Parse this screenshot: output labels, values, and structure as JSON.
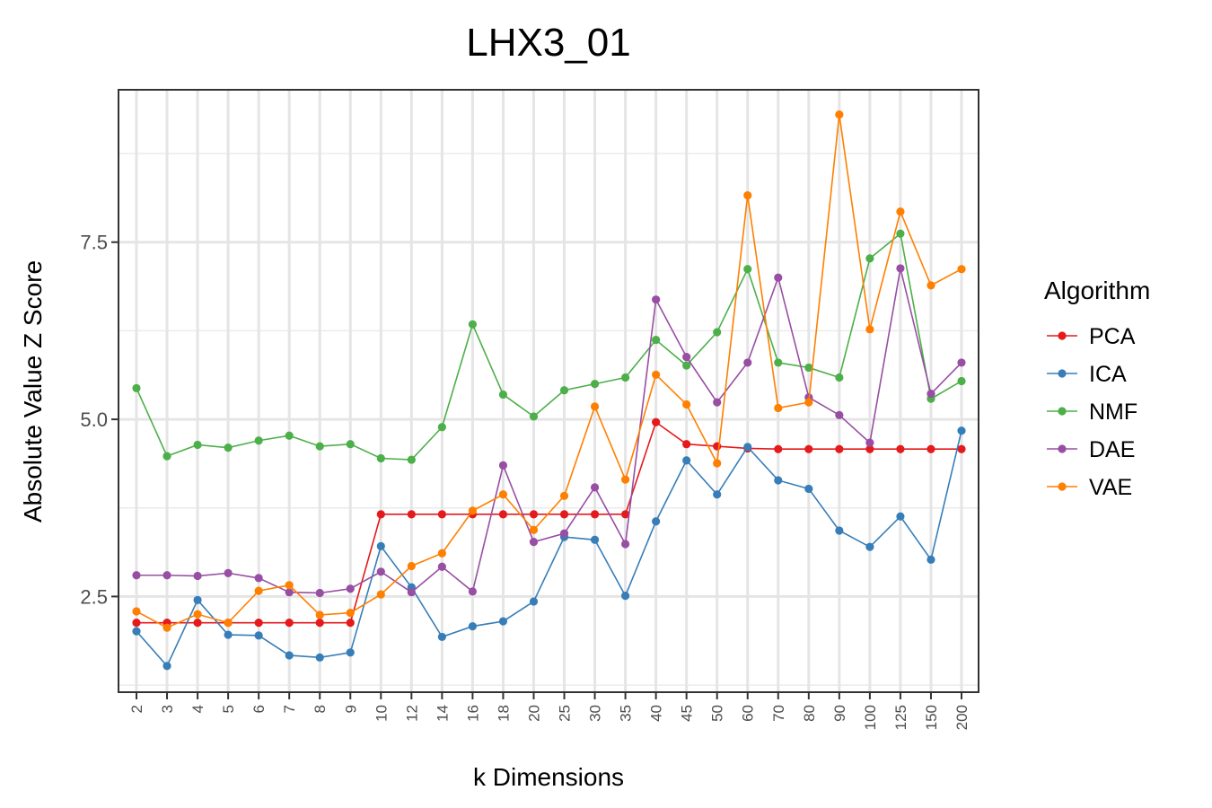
{
  "chart_data": {
    "type": "line",
    "title": "LHX3_01",
    "xlabel": "k Dimensions",
    "ylabel": "Absolute Value Z Score",
    "categories": [
      "2",
      "3",
      "4",
      "5",
      "6",
      "7",
      "8",
      "9",
      "10",
      "12",
      "14",
      "16",
      "18",
      "20",
      "25",
      "30",
      "35",
      "40",
      "45",
      "50",
      "60",
      "70",
      "80",
      "90",
      "100",
      "125",
      "150",
      "200"
    ],
    "ylim": [
      1.15,
      9.65
    ],
    "yticks": [
      2.5,
      5.0,
      7.5
    ],
    "ytick_labels": [
      "2.5",
      "5.0",
      "7.5"
    ],
    "grid": true,
    "legend_title": "Algorithm",
    "legend_position": "right",
    "series": [
      {
        "name": "PCA",
        "color": "#E41A1C",
        "values": [
          2.13,
          2.13,
          2.13,
          2.13,
          2.13,
          2.13,
          2.13,
          2.13,
          3.66,
          3.66,
          3.66,
          3.66,
          3.66,
          3.66,
          3.66,
          3.66,
          3.66,
          4.96,
          4.65,
          4.62,
          4.59,
          4.58,
          4.58,
          4.58,
          4.58,
          4.58,
          4.58,
          4.58
        ]
      },
      {
        "name": "ICA",
        "color": "#377EB8",
        "values": [
          2.01,
          1.52,
          2.45,
          1.96,
          1.95,
          1.67,
          1.64,
          1.71,
          3.21,
          2.63,
          1.93,
          2.08,
          2.15,
          2.43,
          3.34,
          3.3,
          2.51,
          3.56,
          4.42,
          3.94,
          4.61,
          4.14,
          4.02,
          3.43,
          3.2,
          3.63,
          3.02,
          4.84
        ]
      },
      {
        "name": "NMF",
        "color": "#4DAF4A",
        "values": [
          5.44,
          4.48,
          4.64,
          4.6,
          4.7,
          4.77,
          4.62,
          4.65,
          4.45,
          4.43,
          4.89,
          6.34,
          5.35,
          5.04,
          5.41,
          5.5,
          5.59,
          6.12,
          5.76,
          6.23,
          7.12,
          5.8,
          5.73,
          5.59,
          7.27,
          7.62,
          5.29,
          5.54
        ]
      },
      {
        "name": "DAE",
        "color": "#984EA3",
        "values": [
          2.8,
          2.8,
          2.79,
          2.83,
          2.76,
          2.56,
          2.55,
          2.61,
          2.85,
          2.56,
          2.92,
          2.57,
          4.35,
          3.27,
          3.39,
          4.04,
          3.24,
          6.69,
          5.88,
          5.24,
          5.8,
          7.0,
          5.31,
          5.06,
          4.67,
          7.13,
          5.36,
          5.8
        ]
      },
      {
        "name": "VAE",
        "color": "#FF7F00",
        "values": [
          2.29,
          2.06,
          2.25,
          2.13,
          2.58,
          2.66,
          2.24,
          2.27,
          2.53,
          2.93,
          3.11,
          3.71,
          3.94,
          3.44,
          3.92,
          5.18,
          4.15,
          5.63,
          5.21,
          4.38,
          8.16,
          5.16,
          5.24,
          9.3,
          6.27,
          7.93,
          6.89,
          7.12
        ]
      }
    ]
  }
}
